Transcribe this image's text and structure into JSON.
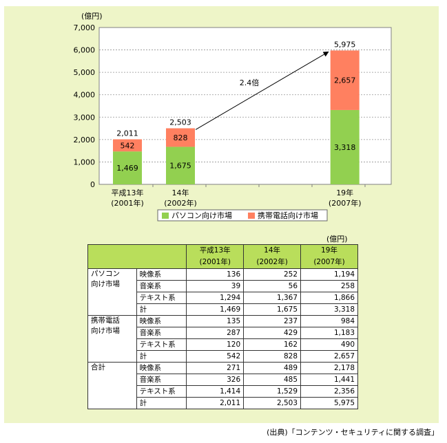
{
  "chart_data": {
    "type": "bar",
    "stacked": true,
    "unit": "(億円)",
    "ylim": [
      0,
      7000
    ],
    "yticks": [
      "0",
      "1,000",
      "2,000",
      "3,000",
      "4,000",
      "5,000",
      "6,000",
      "7,000"
    ],
    "categories": [
      {
        "line1": "平成13年",
        "line2": "(2001年)",
        "total": "2,011",
        "pos": 0
      },
      {
        "line1": "14年",
        "line2": "(2002年)",
        "total": "2,503",
        "pos": 1
      },
      {
        "line1": "19年",
        "line2": "(2007年)",
        "total": "5,975",
        "pos": 4.1
      }
    ],
    "series": [
      {
        "name": "パソコン向け市場",
        "color": "#92d050",
        "values": [
          1469,
          1675,
          3318
        ],
        "labels": [
          "1,469",
          "1,675",
          "3,318"
        ]
      },
      {
        "name": "携帯電話向け市場",
        "color": "#ff8060",
        "values": [
          542,
          828,
          2657
        ],
        "labels": [
          "542",
          "828",
          "2,657"
        ]
      }
    ],
    "annotation": "2.4倍"
  },
  "table": {
    "unit": "(億円)",
    "headers": [
      {
        "line1": "平成13年",
        "line2": "(2001年)"
      },
      {
        "line1": "14年",
        "line2": "(2002年)"
      },
      {
        "line1": "19年",
        "line2": "(2007年)"
      }
    ],
    "groups": [
      {
        "name1": "パソコン",
        "name2": "向け市場",
        "rows": [
          {
            "label": "映像系",
            "values": [
              "136",
              "252",
              "1,194"
            ]
          },
          {
            "label": "音楽系",
            "values": [
              "39",
              "56",
              "258"
            ]
          },
          {
            "label": "テキスト系",
            "values": [
              "1,294",
              "1,367",
              "1,866"
            ]
          },
          {
            "label": "計",
            "values": [
              "1,469",
              "1,675",
              "3,318"
            ]
          }
        ]
      },
      {
        "name1": "携帯電話",
        "name2": "向け市場",
        "rows": [
          {
            "label": "映像系",
            "values": [
              "135",
              "237",
              "984"
            ]
          },
          {
            "label": "音楽系",
            "values": [
              "287",
              "429",
              "1,183"
            ]
          },
          {
            "label": "テキスト系",
            "values": [
              "120",
              "162",
              "490"
            ]
          },
          {
            "label": "計",
            "values": [
              "542",
              "828",
              "2,657"
            ]
          }
        ]
      },
      {
        "name1": "合計",
        "name2": "",
        "rows": [
          {
            "label": "映像系",
            "values": [
              "271",
              "489",
              "2,178"
            ]
          },
          {
            "label": "音楽系",
            "values": [
              "326",
              "485",
              "1,441"
            ]
          },
          {
            "label": "テキスト系",
            "values": [
              "1,414",
              "1,529",
              "2,356"
            ]
          },
          {
            "label": "計",
            "values": [
              "2,011",
              "2,503",
              "5,975"
            ]
          }
        ]
      }
    ]
  },
  "source": "(出典)「コンテンツ・セキュリティに関する調査」"
}
